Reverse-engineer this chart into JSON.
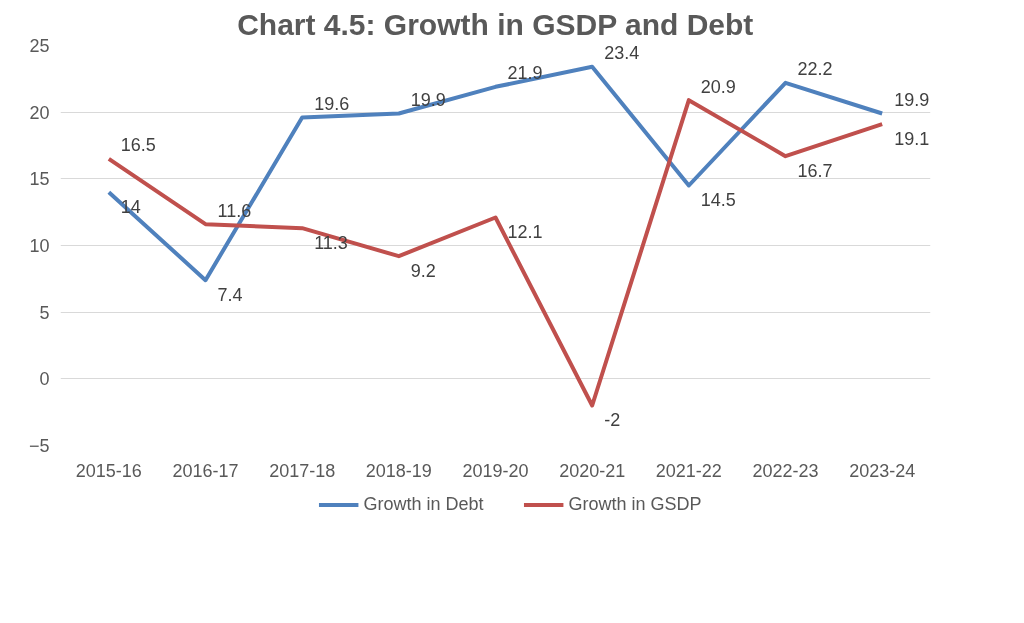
{
  "chart_data": {
    "type": "line",
    "title": "Chart 4.5: Growth in GSDP and Debt",
    "categories": [
      "2015-16",
      "2016-17",
      "2017-18",
      "2018-19",
      "2019-20",
      "2020-21",
      "2021-22",
      "2022-23",
      "2023-24"
    ],
    "series": [
      {
        "name": "Growth in Debt",
        "color": "#4f81bd",
        "values": [
          14,
          7.4,
          19.6,
          19.9,
          21.9,
          23.4,
          14.5,
          22.2,
          19.9
        ]
      },
      {
        "name": "Growth in GSDP",
        "color": "#c0504d",
        "values": [
          16.5,
          11.6,
          11.3,
          9.2,
          12.1,
          -2,
          20.9,
          16.7,
          19.1
        ]
      }
    ],
    "ylim": [
      -5,
      25
    ],
    "yticks": [
      -5,
      0,
      5,
      10,
      15,
      20,
      25
    ],
    "grid": "y",
    "legend": "bottom",
    "data_labels": true,
    "marker": "none",
    "line_style": "solid"
  }
}
